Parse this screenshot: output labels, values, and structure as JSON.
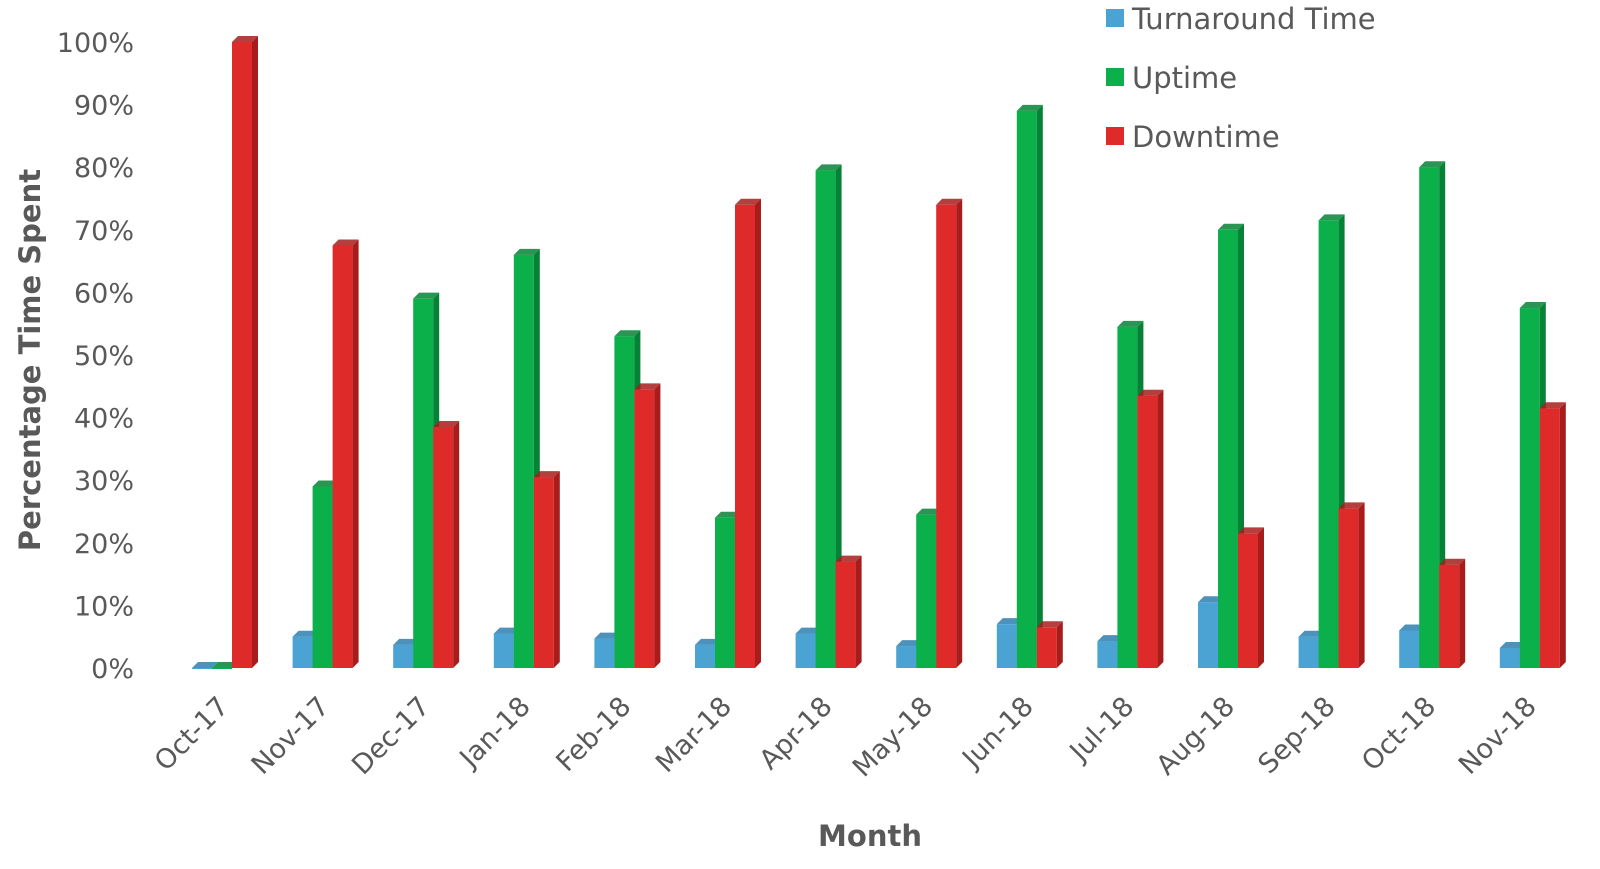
{
  "chart_data": {
    "type": "bar",
    "style": "3d-clustered-column",
    "xlabel": "Month",
    "ylabel": "Percentage Time Spent",
    "ylim": [
      0,
      100
    ],
    "y_ticks": [
      "0%",
      "10%",
      "20%",
      "30%",
      "40%",
      "50%",
      "60%",
      "70%",
      "80%",
      "90%",
      "100%"
    ],
    "grid": false,
    "legend": "top-right",
    "categories": [
      "Oct-17",
      "Nov-17",
      "Dec-17",
      "Jan-18",
      "Feb-18",
      "Mar-18",
      "Apr-18",
      "May-18",
      "Jun-18",
      "Jul-18",
      "Aug-18",
      "Sep-18",
      "Oct-18",
      "Nov-18"
    ],
    "series": [
      {
        "name": "Turnaround Time",
        "color": "#4BA3D3",
        "side_color": "#2E7FAE",
        "values": [
          0,
          5,
          3.7,
          5.5,
          4.7,
          3.7,
          5.5,
          3.5,
          7,
          4.3,
          10.5,
          5,
          6,
          3.2
        ]
      },
      {
        "name": "Uptime",
        "color": "#0BB04B",
        "side_color": "#068236",
        "values": [
          0,
          29,
          59,
          66,
          53,
          24,
          79.5,
          24.5,
          89,
          54.5,
          70,
          71.5,
          80,
          57.5
        ]
      },
      {
        "name": "Downtime",
        "color": "#DF2A2A",
        "side_color": "#A81C1C",
        "values": [
          100,
          67.5,
          38.5,
          30.5,
          44.5,
          74,
          17,
          74,
          6.5,
          43.5,
          21.5,
          25.5,
          16.5,
          41.5
        ]
      }
    ]
  }
}
